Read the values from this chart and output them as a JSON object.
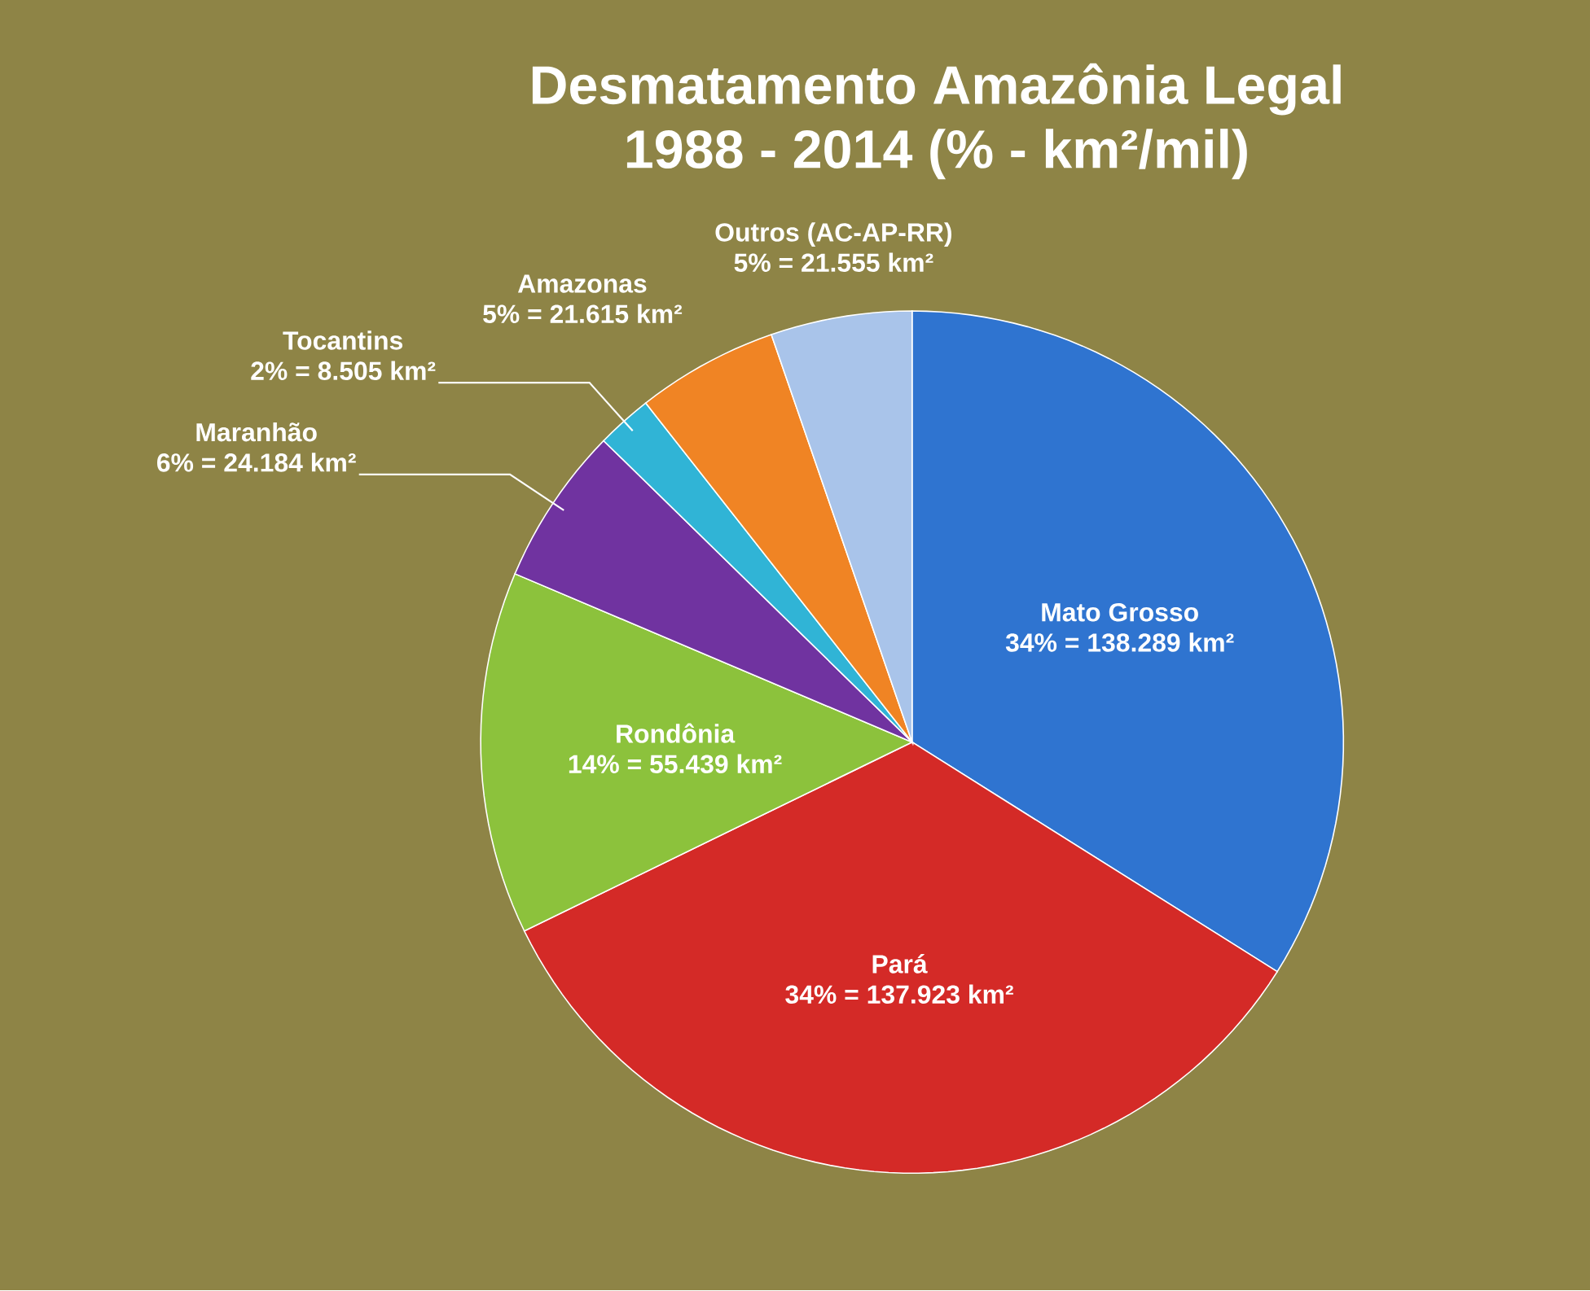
{
  "chart_data": {
    "type": "pie",
    "title": "Desmatamento Amazônia Legal",
    "subtitle": "1988 - 2014 (% - km²/mil)",
    "categories": [
      "Mato Grosso",
      "Pará",
      "Rondônia",
      "Maranhão",
      "Tocantins",
      "Amazonas",
      "Outros (AC-AP-RR)"
    ],
    "values": [
      138289,
      137923,
      55439,
      24184,
      8505,
      21615,
      21555
    ],
    "value_labels": [
      "34%  = 138.289 km²",
      "34% = 137.923 km²",
      "14% = 55.439 km²",
      "6% = 24.184 km²",
      "2% = 8.505 km²",
      "5% = 21.615 km²",
      "5% = 21.555 km²"
    ],
    "colors": [
      "#2f74d0",
      "#d42a27",
      "#8cc23c",
      "#7033a0",
      "#30b4d6",
      "#f08424",
      "#a9c4ea"
    ]
  }
}
